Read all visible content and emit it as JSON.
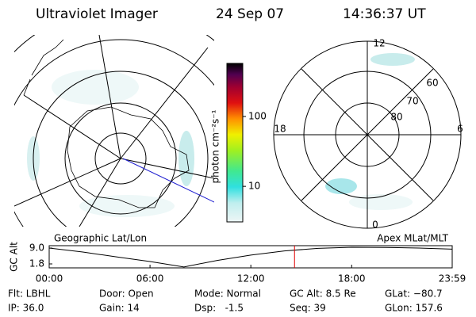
{
  "header": {
    "title": "Ultraviolet Imager",
    "date": "24 Sep 07",
    "time": "14:36:37 UT"
  },
  "colorbar": {
    "label": "photon cm⁻²s⁻¹",
    "log": true,
    "lim": [
      3.1,
      575
    ],
    "ticks": [
      10,
      100
    ]
  },
  "polar": {
    "mlt_labels": [
      "12",
      "18",
      "6",
      "0"
    ],
    "lat_labels": [
      "60",
      "70",
      "80"
    ]
  },
  "chart_data": {
    "type": "line",
    "ylabel": "GC Alt",
    "annotations": [
      "Geographic Lat/Lon",
      "Apex MLat/MLT"
    ],
    "x": [
      0,
      120,
      240,
      360,
      481,
      600,
      720,
      840,
      960,
      1080,
      1200,
      1320,
      1439
    ],
    "series": [
      {
        "color": "#000000",
        "values": [
          9.0,
          7.2,
          5.0,
          2.9,
          0.4,
          3.4,
          5.8,
          7.7,
          8.9,
          9.4,
          9.3,
          9.0,
          8.5
        ]
      }
    ],
    "marker": {
      "value": 876,
      "color": "#e00000"
    },
    "xlim": [
      0,
      1439
    ],
    "xticks": [
      {
        "value": 0,
        "label": "00:00"
      },
      {
        "value": 360,
        "label": "06:00"
      },
      {
        "value": 720,
        "label": "12:00"
      },
      {
        "value": 1080,
        "label": "18:00"
      },
      {
        "value": 1439,
        "label": "23:59"
      }
    ],
    "ylim": [
      0,
      10.1
    ],
    "yticks": [
      {
        "value": 9,
        "label": "9.0"
      },
      {
        "value": 1.8,
        "label": "1.8"
      }
    ],
    "grid": false
  },
  "footer": {
    "rows": [
      [
        "Flt: LBHL",
        "Door: Open",
        "Mode: Normal",
        "GC Alt: 8.5 Re",
        "GLat: −80.7"
      ],
      [
        "IP: 36.0",
        "Gain: 14",
        "Dsp:   -1.5",
        "Seq: 39",
        "GLon: 157.6"
      ]
    ]
  }
}
